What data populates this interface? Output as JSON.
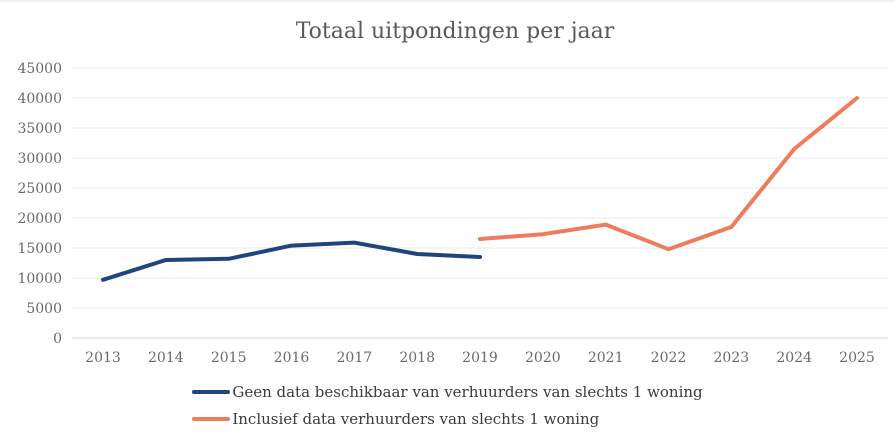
{
  "title": "Totaal uitpondingen per jaar",
  "colors": {
    "series1": "#20457d",
    "series2": "#ee7d5b",
    "title_text": "#595959",
    "axis_text": "#6a6a6a",
    "legend_text": "#3b3b3b"
  },
  "chart_data": {
    "type": "line",
    "title": "Totaal uitpondingen per jaar",
    "x": [
      2013,
      2014,
      2015,
      2016,
      2017,
      2018,
      2019,
      2020,
      2021,
      2022,
      2023,
      2024,
      2025
    ],
    "series": [
      {
        "name": "Geen data beschikbaar van verhuurders van slechts 1 woning",
        "color": "#20457d",
        "values": [
          9700,
          13000,
          13200,
          15400,
          15900,
          14000,
          13500,
          null,
          null,
          null,
          null,
          null,
          null
        ]
      },
      {
        "name": "Inclusief data verhuurders van slechts 1 woning",
        "color": "#ee7d5b",
        "values": [
          null,
          null,
          null,
          null,
          null,
          null,
          16500,
          17300,
          18900,
          14800,
          18500,
          31500,
          40000
        ]
      }
    ],
    "xlabel": "",
    "ylabel": "",
    "ylim": [
      0,
      45000
    ],
    "ytick_step": 5000,
    "grid": true,
    "legend_position": "bottom"
  }
}
